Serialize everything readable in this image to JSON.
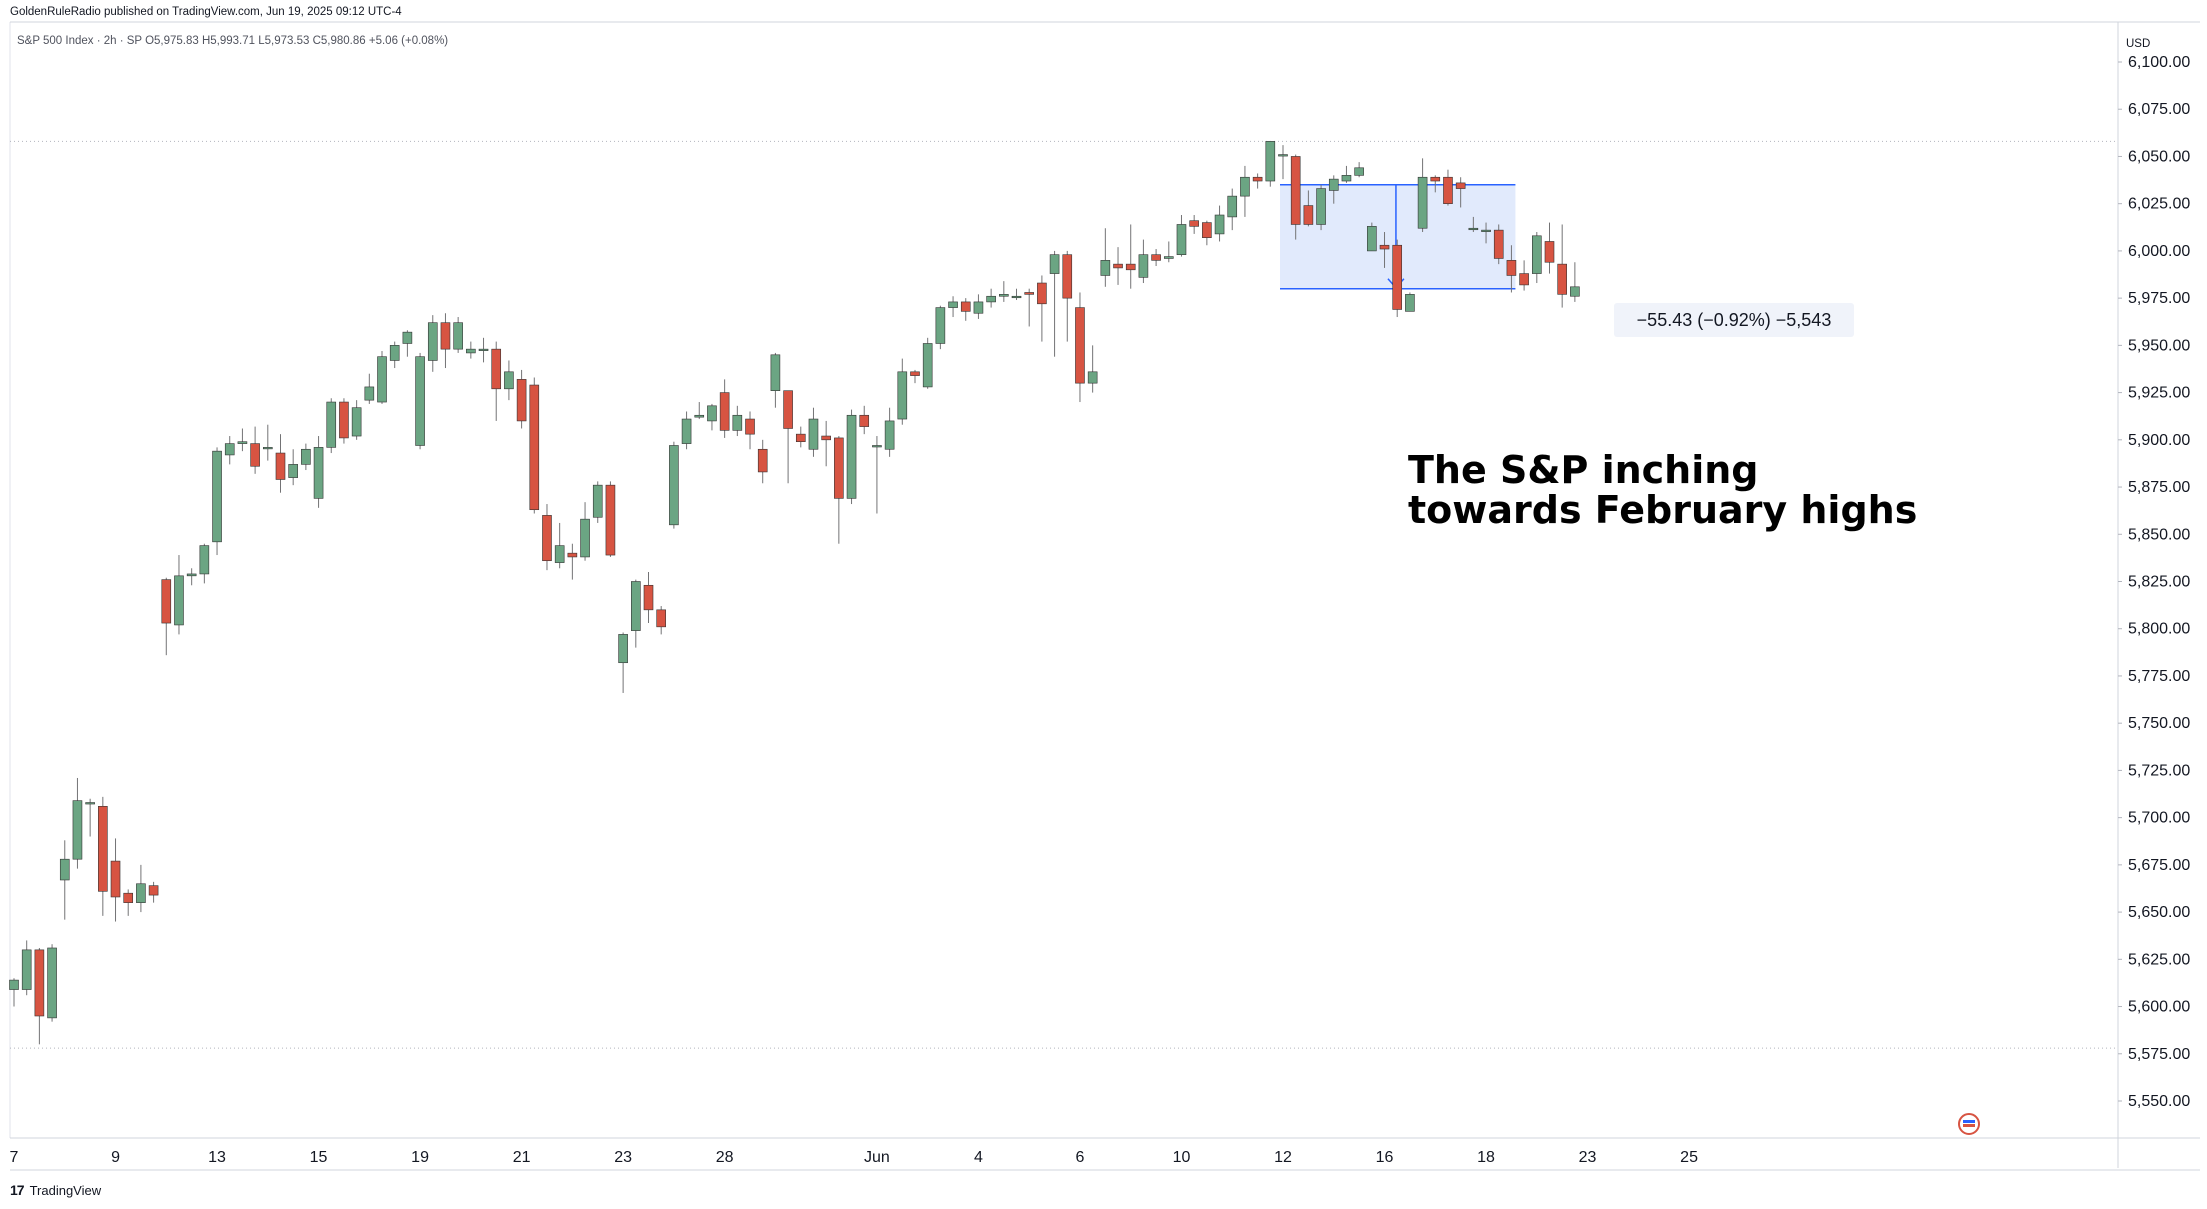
{
  "header": {
    "publisher_text": "GoldenRuleRadio published on TradingView.com, Jun 19, 2025 09:12 UTC-4",
    "symbol_line": "S&P 500 Index · 2h · SP   O5,975.83  H5,993.71  L5,973.53  C5,980.86  +5.06 (+0.08%)",
    "currency": "USD"
  },
  "footer": {
    "logo_mark": "17",
    "logo_text": "TradingView"
  },
  "annotation": {
    "line1": "The S&P inching",
    "line2": "towards February highs"
  },
  "measure": {
    "label": "−55.43 (−0.92%) −5,543"
  },
  "colors": {
    "up": "#6ba583",
    "down": "#d75442",
    "measure_fill": "#dce6fb",
    "measure_line": "#2962ff"
  },
  "chart_data": {
    "type": "candlestick",
    "ylim": [
      5525,
      6125
    ],
    "y_ticks": [
      5550,
      5575,
      5600,
      5625,
      5650,
      5675,
      5700,
      5725,
      5750,
      5775,
      5800,
      5825,
      5850,
      5875,
      5900,
      5925,
      5950,
      5975,
      6000,
      6025,
      6050,
      6075,
      6100
    ],
    "y_tick_labels": [
      "5,550.00",
      "5,575.00",
      "5,600.00",
      "5,625.00",
      "5,650.00",
      "5,675.00",
      "5,700.00",
      "5,725.00",
      "5,750.00",
      "5,775.00",
      "5,800.00",
      "5,825.00",
      "5,850.00",
      "5,875.00",
      "5,900.00",
      "5,925.00",
      "5,950.00",
      "5,975.00",
      "6,000.00",
      "6,025.00",
      "6,050.00",
      "6,075.00",
      "6,100.00"
    ],
    "x_ticks": [
      {
        "label": "7",
        "bar": 0
      },
      {
        "label": "9",
        "bar": 8
      },
      {
        "label": "13",
        "bar": 16
      },
      {
        "label": "15",
        "bar": 24
      },
      {
        "label": "19",
        "bar": 32
      },
      {
        "label": "21",
        "bar": 40
      },
      {
        "label": "23",
        "bar": 48
      },
      {
        "label": "28",
        "bar": 56
      },
      {
        "label": "Jun",
        "bar": 68
      },
      {
        "label": "4",
        "bar": 76
      },
      {
        "label": "6",
        "bar": 84
      },
      {
        "label": "10",
        "bar": 92
      },
      {
        "label": "12",
        "bar": 100
      },
      {
        "label": "16",
        "bar": 108
      },
      {
        "label": "18",
        "bar": 116
      },
      {
        "label": "23",
        "bar": 124
      },
      {
        "label": "25",
        "bar": 132
      }
    ],
    "horizontal_levels": [
      6058,
      5578
    ],
    "measure_box": {
      "bar_start": 100,
      "bar_end": 118,
      "high": 6035,
      "low": 5980,
      "arrow_bar": 108.9
    },
    "candles": [
      [
        5609,
        5614,
        5600,
        5615
      ],
      [
        5609,
        5630,
        5606,
        5635
      ],
      [
        5630,
        5595,
        5580,
        5631
      ],
      [
        5594,
        5631,
        5592,
        5633
      ],
      [
        5667,
        5678,
        5646,
        5688
      ],
      [
        5678,
        5709,
        5673,
        5721
      ],
      [
        5708,
        5708,
        5690,
        5710
      ],
      [
        5706,
        5661,
        5648,
        5711
      ],
      [
        5677,
        5658,
        5645,
        5689
      ],
      [
        5660,
        5655,
        5648,
        5662
      ],
      [
        5655,
        5665,
        5650,
        5675
      ],
      [
        5664,
        5659,
        5655,
        5666
      ],
      [
        5826,
        5803,
        5786,
        5827
      ],
      [
        5802,
        5828,
        5797,
        5839
      ],
      [
        5828,
        5829,
        5823,
        5832
      ],
      [
        5829,
        5844,
        5824,
        5845
      ],
      [
        5846,
        5894,
        5839,
        5896
      ],
      [
        5892,
        5898,
        5887,
        5902
      ],
      [
        5898,
        5899,
        5894,
        5906
      ],
      [
        5898,
        5886,
        5882,
        5907
      ],
      [
        5896,
        5896,
        5889,
        5908
      ],
      [
        5893,
        5879,
        5872,
        5903
      ],
      [
        5880,
        5887,
        5876,
        5895
      ],
      [
        5887,
        5895,
        5884,
        5898
      ],
      [
        5869,
        5896,
        5864,
        5902
      ],
      [
        5896,
        5920,
        5893,
        5922
      ],
      [
        5920,
        5901,
        5898,
        5922
      ],
      [
        5902,
        5917,
        5900,
        5921
      ],
      [
        5921,
        5928,
        5919,
        5935
      ],
      [
        5920,
        5944,
        5919,
        5947
      ],
      [
        5942,
        5950,
        5938,
        5952
      ],
      [
        5951,
        5957,
        5944,
        5958
      ],
      [
        5897,
        5944,
        5895,
        5946
      ],
      [
        5942,
        5962,
        5936,
        5966
      ],
      [
        5962,
        5948,
        5938,
        5967
      ],
      [
        5948,
        5962,
        5946,
        5965
      ],
      [
        5946,
        5948,
        5943,
        5952
      ],
      [
        5948,
        5948,
        5941,
        5954
      ],
      [
        5948,
        5927,
        5910,
        5952
      ],
      [
        5927,
        5936,
        5921,
        5942
      ],
      [
        5932,
        5910,
        5906,
        5937
      ],
      [
        5929,
        5863,
        5861,
        5933
      ],
      [
        5860,
        5836,
        5831,
        5866
      ],
      [
        5835,
        5844,
        5832,
        5856
      ],
      [
        5840,
        5838,
        5826,
        5845
      ],
      [
        5838,
        5858,
        5836,
        5867
      ],
      [
        5859,
        5876,
        5856,
        5878
      ],
      [
        5876,
        5839,
        5838,
        5878
      ],
      [
        5782,
        5797,
        5766,
        5798
      ],
      [
        5799,
        5825,
        5790,
        5826
      ],
      [
        5823,
        5810,
        5803,
        5830
      ],
      [
        5810,
        5801,
        5797,
        5812
      ],
      [
        5855,
        5897,
        5853,
        5899
      ],
      [
        5898,
        5911,
        5895,
        5915
      ],
      [
        5912,
        5913,
        5911,
        5920
      ],
      [
        5910,
        5918,
        5905,
        5919
      ],
      [
        5925,
        5905,
        5901,
        5932
      ],
      [
        5905,
        5913,
        5902,
        5918
      ],
      [
        5911,
        5903,
        5895,
        5915
      ],
      [
        5895,
        5883,
        5877,
        5900
      ],
      [
        5926,
        5945,
        5917,
        5946
      ],
      [
        5926,
        5906,
        5877,
        5926
      ],
      [
        5903,
        5899,
        5896,
        5907
      ],
      [
        5895,
        5911,
        5891,
        5917
      ],
      [
        5902,
        5900,
        5886,
        5910
      ],
      [
        5901,
        5869,
        5845,
        5902
      ],
      [
        5869,
        5913,
        5866,
        5916
      ],
      [
        5913,
        5907,
        5903,
        5918
      ],
      [
        5897,
        5897,
        5861,
        5902
      ],
      [
        5895,
        5910,
        5891,
        5917
      ],
      [
        5911,
        5936,
        5908,
        5943
      ],
      [
        5936,
        5934,
        5930,
        5937
      ],
      [
        5928,
        5951,
        5927,
        5954
      ],
      [
        5951,
        5970,
        5948,
        5971
      ],
      [
        5970,
        5973,
        5965,
        5976
      ],
      [
        5973,
        5968,
        5963,
        5975
      ],
      [
        5967,
        5973,
        5964,
        5977
      ],
      [
        5973,
        5976,
        5970,
        5980
      ],
      [
        5976,
        5977,
        5973,
        5984
      ],
      [
        5976,
        5976,
        5974,
        5980
      ],
      [
        5978,
        5977,
        5960,
        5980
      ],
      [
        5983,
        5972,
        5952,
        5987
      ],
      [
        5988,
        5998,
        5944,
        6000
      ],
      [
        5998,
        5975,
        5952,
        6000
      ],
      [
        5970,
        5930,
        5920,
        5978
      ],
      [
        5930,
        5936,
        5925,
        5950
      ],
      [
        5987,
        5995,
        5981,
        6012
      ],
      [
        5993,
        5991,
        5982,
        6002
      ],
      [
        5993,
        5990,
        5980,
        6014
      ],
      [
        5986,
        5998,
        5983,
        6006
      ],
      [
        5998,
        5995,
        5992,
        6001
      ],
      [
        5996,
        5997,
        5994,
        6005
      ],
      [
        5998,
        6014,
        5997,
        6019
      ],
      [
        6016,
        6013,
        6009,
        6019
      ],
      [
        6015,
        6007,
        6003,
        6016
      ],
      [
        6009,
        6019,
        6005,
        6024
      ],
      [
        6018,
        6029,
        6011,
        6033
      ],
      [
        6029,
        6039,
        6018,
        6045
      ],
      [
        6039,
        6037,
        6033,
        6041
      ],
      [
        6037,
        6058,
        6034,
        6058
      ],
      [
        6051,
        6051,
        6038,
        6056
      ],
      [
        6050,
        6014,
        6006,
        6051
      ],
      [
        6024,
        6014,
        6013,
        6032
      ],
      [
        6014,
        6033,
        6011,
        6035
      ],
      [
        6032,
        6038,
        6025,
        6040
      ],
      [
        6037,
        6040,
        6036,
        6045
      ],
      [
        6040,
        6044,
        6039,
        6047
      ],
      [
        6000,
        6013,
        6000,
        6015
      ],
      [
        6003,
        6001,
        5991,
        6010
      ],
      [
        6003,
        5969,
        5965,
        6006
      ],
      [
        5968,
        5977,
        5968,
        5978
      ],
      [
        6012,
        6039,
        6010,
        6049
      ],
      [
        6039,
        6037,
        6031,
        6040
      ],
      [
        6039,
        6025,
        6024,
        6043
      ],
      [
        6036,
        6033,
        6023,
        6039
      ],
      [
        6012,
        6012,
        6010,
        6018
      ],
      [
        6011,
        6011,
        6004,
        6015
      ],
      [
        6011,
        5996,
        5993,
        6014
      ],
      [
        5995,
        5987,
        5978,
        6003
      ],
      [
        5988,
        5982,
        5979,
        5995
      ],
      [
        5988,
        6008,
        5983,
        6010
      ],
      [
        6005,
        5994,
        5988,
        6015
      ],
      [
        5993,
        5977,
        5970,
        6014
      ],
      [
        5976,
        5981,
        5973,
        5994
      ]
    ]
  }
}
